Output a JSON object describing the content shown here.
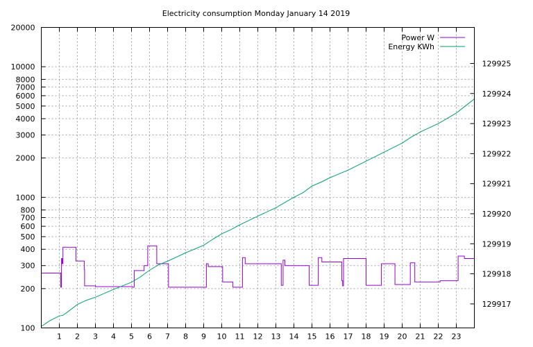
{
  "chart_data": {
    "type": "line",
    "title": "Electricity consumption Monday January 14 2019",
    "xlabel": "",
    "ylabel": "",
    "y2label": "",
    "grid": true,
    "legend_position": "top-right",
    "x_ticks": [
      1,
      2,
      3,
      4,
      5,
      6,
      7,
      8,
      9,
      10,
      11,
      12,
      13,
      14,
      15,
      16,
      17,
      18,
      19,
      20,
      21,
      22,
      23
    ],
    "xlim": [
      0,
      24
    ],
    "y_scale": "log",
    "ylim": [
      100,
      20000
    ],
    "y_ticks": [
      100,
      200,
      300,
      400,
      500,
      600,
      700,
      800,
      1000,
      2000,
      3000,
      4000,
      5000,
      6000,
      7000,
      8000,
      10000,
      20000
    ],
    "y2lim": [
      129916.2,
      129926.2
    ],
    "y2_ticks": [
      129917,
      129918,
      129919,
      129920,
      129921,
      129922,
      129923,
      129924,
      129925
    ],
    "series": [
      {
        "name": "Power W",
        "axis": "left",
        "color": "#9400d3",
        "step": true,
        "x": [
          0,
          1.05,
          1.08,
          1.12,
          1.16,
          1.2,
          1.45,
          1.92,
          2.38,
          2.4,
          3.0,
          5.05,
          5.15,
          5.7,
          5.9,
          6.4,
          7.05,
          9.1,
          9.15,
          9.25,
          10.05,
          10.6,
          10.62,
          11.15,
          11.3,
          13.3,
          13.4,
          13.5,
          14.3,
          14.85,
          15.35,
          15.55,
          16.65,
          16.7,
          16.75,
          18.0,
          18.85,
          19.6,
          19.95,
          20.45,
          20.7,
          21.5,
          22.1,
          22.55,
          23.1,
          23.45,
          24.0
        ],
        "values": [
          263,
          263,
          205,
          340,
          310,
          415,
          415,
          325,
          280,
          210,
          207,
          205,
          275,
          300,
          425,
          310,
          205,
          205,
          310,
          295,
          225,
          225,
          205,
          345,
          310,
          212,
          330,
          300,
          300,
          212,
          345,
          320,
          230,
          210,
          340,
          212,
          310,
          215,
          215,
          315,
          225,
          225,
          230,
          230,
          355,
          340,
          263
        ],
        "x_end": 24.0
      },
      {
        "name": "Energy KWh",
        "axis": "right",
        "color": "#009e73",
        "x": [
          0,
          0.5,
          1.0,
          1.2,
          1.5,
          2.0,
          2.5,
          3.0,
          4.0,
          5.0,
          5.5,
          6.0,
          6.5,
          7.0,
          8.0,
          9.0,
          9.5,
          10.0,
          10.5,
          11.0,
          12.0,
          13.0,
          14.0,
          14.5,
          15.0,
          15.5,
          16.0,
          17.0,
          18.0,
          19.0,
          20.0,
          20.5,
          21.0,
          22.0,
          23.0,
          24.0
        ],
        "values": [
          129916.25,
          129916.45,
          129916.6,
          129916.62,
          129916.75,
          129916.98,
          129917.12,
          129917.22,
          129917.48,
          129917.72,
          129917.9,
          129918.12,
          129918.3,
          129918.42,
          129918.7,
          129918.95,
          129919.15,
          129919.33,
          129919.47,
          129919.63,
          129919.92,
          129920.2,
          129920.55,
          129920.7,
          129920.92,
          129921.05,
          129921.2,
          129921.45,
          129921.75,
          129922.05,
          129922.35,
          129922.55,
          129922.72,
          129923.0,
          129923.35,
          129923.82
        ]
      }
    ]
  }
}
